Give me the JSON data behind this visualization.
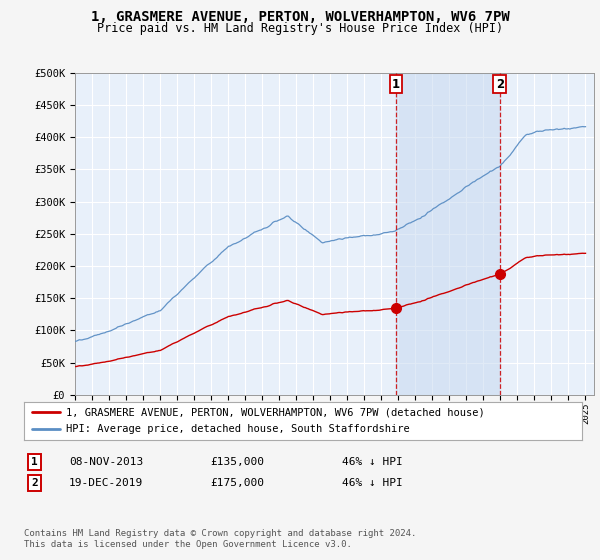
{
  "title": "1, GRASMERE AVENUE, PERTON, WOLVERHAMPTON, WV6 7PW",
  "subtitle": "Price paid vs. HM Land Registry's House Price Index (HPI)",
  "ylim": [
    0,
    500000
  ],
  "yticks": [
    0,
    50000,
    100000,
    150000,
    200000,
    250000,
    300000,
    350000,
    400000,
    450000,
    500000
  ],
  "ytick_labels": [
    "£0",
    "£50K",
    "£100K",
    "£150K",
    "£200K",
    "£250K",
    "£300K",
    "£350K",
    "£400K",
    "£450K",
    "£500K"
  ],
  "fig_bg_color": "#f5f5f5",
  "plot_bg_color": "#e8f0fa",
  "hpi_color": "#5b8ec4",
  "price_color": "#cc0000",
  "vline_color": "#cc0000",
  "span_color": "#c8daf0",
  "transaction1_date": 2013.86,
  "transaction1_price": 135000,
  "transaction2_date": 2019.96,
  "transaction2_price": 175000,
  "legend_line1": "1, GRASMERE AVENUE, PERTON, WOLVERHAMPTON, WV6 7PW (detached house)",
  "legend_line2": "HPI: Average price, detached house, South Staffordshire",
  "table_row1": [
    "1",
    "08-NOV-2013",
    "£135,000",
    "46% ↓ HPI"
  ],
  "table_row2": [
    "2",
    "19-DEC-2019",
    "£175,000",
    "46% ↓ HPI"
  ],
  "footnote": "Contains HM Land Registry data © Crown copyright and database right 2024.\nThis data is licensed under the Open Government Licence v3.0.",
  "title_fontsize": 10,
  "subtitle_fontsize": 8.5,
  "tick_fontsize": 7.5,
  "legend_fontsize": 7.5,
  "table_fontsize": 8,
  "footnote_fontsize": 6.5
}
